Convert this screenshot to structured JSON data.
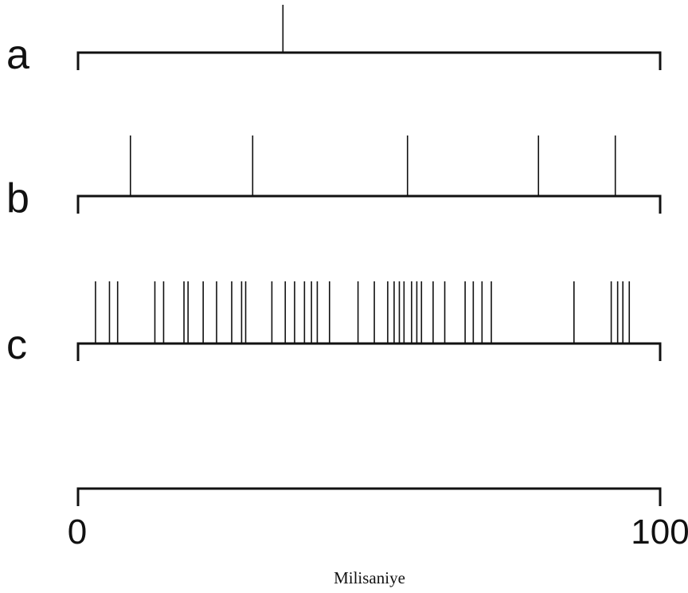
{
  "chart_data": {
    "type": "raster",
    "xlabel": "Milisaniye",
    "xlim": [
      0,
      100
    ],
    "x_ticks": [
      "0",
      "100"
    ],
    "series": [
      {
        "name": "a",
        "spikes": [
          35.2
        ]
      },
      {
        "name": "b",
        "spikes": [
          9.0,
          30.0,
          56.6,
          79.1,
          92.3
        ]
      },
      {
        "name": "c",
        "spikes": [
          3.0,
          5.4,
          6.8,
          13.2,
          14.7,
          18.2,
          18.9,
          21.5,
          23.8,
          26.4,
          28.1,
          28.8,
          33.3,
          35.6,
          37.2,
          38.9,
          40.1,
          41.1,
          43.2,
          48.1,
          50.9,
          53.2,
          54.3,
          55.2,
          56.0,
          57.3,
          58.2,
          59.0,
          61.0,
          63.0,
          66.5,
          67.9,
          69.4,
          71.0,
          85.2,
          91.6,
          92.7,
          93.6,
          94.7
        ]
      },
      {
        "name": "",
        "spikes": []
      }
    ]
  }
}
